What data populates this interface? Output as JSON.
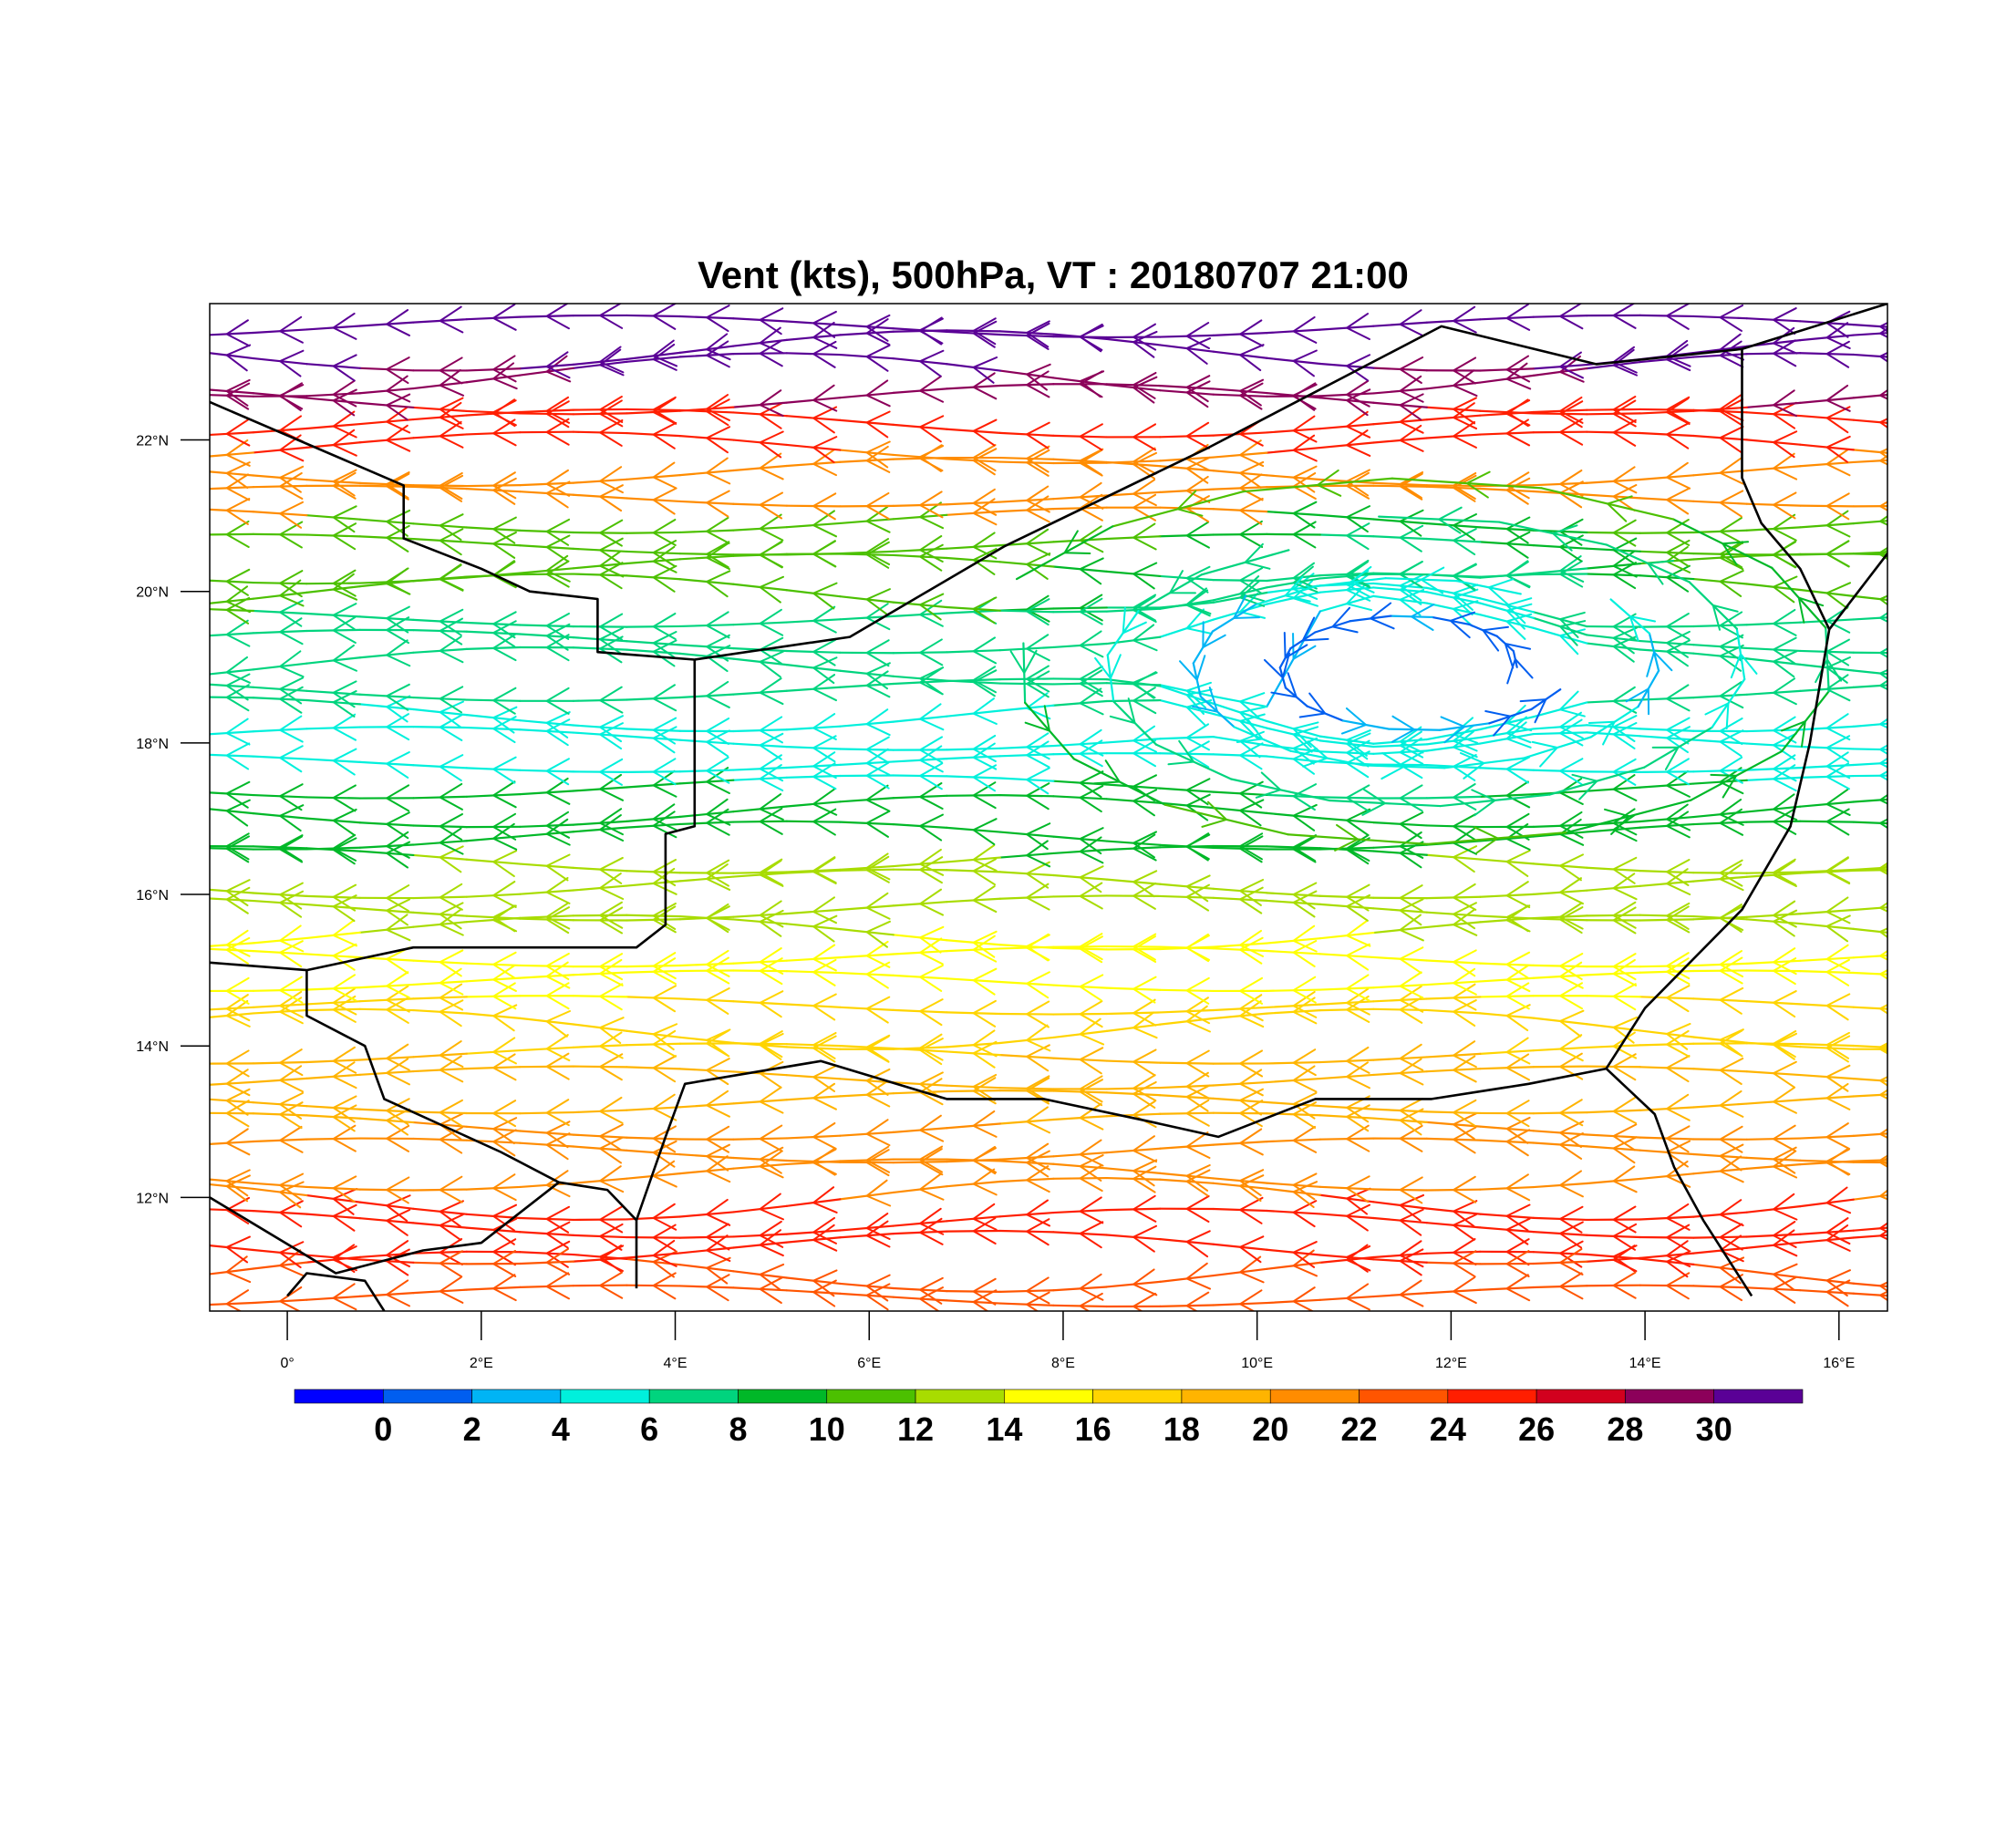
{
  "title": "Vent (kts), 500hPa, VT : 20180707  21:00",
  "map": {
    "lon_range": [
      -0.8,
      16.5
    ],
    "lat_range": [
      10.5,
      23.8
    ],
    "lat_ticks": [
      {
        "value": 12,
        "label": "12°N"
      },
      {
        "value": 14,
        "label": "14°N"
      },
      {
        "value": 16,
        "label": "16°N"
      },
      {
        "value": 18,
        "label": "18°N"
      },
      {
        "value": 20,
        "label": "20°N"
      },
      {
        "value": 22,
        "label": "22°N"
      }
    ],
    "lon_ticks": [
      {
        "value": 0,
        "label": "0°"
      },
      {
        "value": 2,
        "label": "2°E"
      },
      {
        "value": 4,
        "label": "4°E"
      },
      {
        "value": 6,
        "label": "6°E"
      },
      {
        "value": 8,
        "label": "8°E"
      },
      {
        "value": 10,
        "label": "10°E"
      },
      {
        "value": 12,
        "label": "12°E"
      },
      {
        "value": 14,
        "label": "14°E"
      },
      {
        "value": 16,
        "label": "16°E"
      }
    ],
    "border_color": "#000000"
  },
  "colorbar": {
    "colors": [
      "#0000ff",
      "#005ef0",
      "#00b4f5",
      "#00f0dc",
      "#00d47e",
      "#00b828",
      "#4cc000",
      "#a8dc00",
      "#ffff00",
      "#ffd400",
      "#ffb400",
      "#ff8c00",
      "#ff5500",
      "#ff1e00",
      "#d2001e",
      "#8c005a",
      "#5a0096"
    ],
    "labels": [
      "0",
      "2",
      "4",
      "6",
      "8",
      "10",
      "12",
      "14",
      "16",
      "18",
      "20",
      "22",
      "24",
      "26",
      "28",
      "30"
    ]
  },
  "chart_data": {
    "type": "streamlines",
    "variable": "wind speed",
    "units": "kts",
    "level": "500hPa",
    "valid_time": "20180707  21:00",
    "direction": "easterly flow (from east to west) with cyclonic eddy near 10-13°E, 18-20°N",
    "bands": [
      {
        "lat": 23.2,
        "speed": 31
      },
      {
        "lat": 22.7,
        "speed": 28
      },
      {
        "lat": 22.2,
        "speed": 25
      },
      {
        "lat": 21.5,
        "speed": 20
      },
      {
        "lat": 20.5,
        "speed": 11
      },
      {
        "lat": 19.0,
        "speed": 6
      },
      {
        "lat": 18.0,
        "speed": 4
      },
      {
        "lat": 17.0,
        "speed": 9
      },
      {
        "lat": 16.0,
        "speed": 12
      },
      {
        "lat": 15.0,
        "speed": 14
      },
      {
        "lat": 14.3,
        "speed": 17
      },
      {
        "lat": 13.5,
        "speed": 19
      },
      {
        "lat": 12.5,
        "speed": 20
      },
      {
        "lat": 11.5,
        "speed": 24
      },
      {
        "lat": 10.8,
        "speed": 22
      }
    ]
  }
}
